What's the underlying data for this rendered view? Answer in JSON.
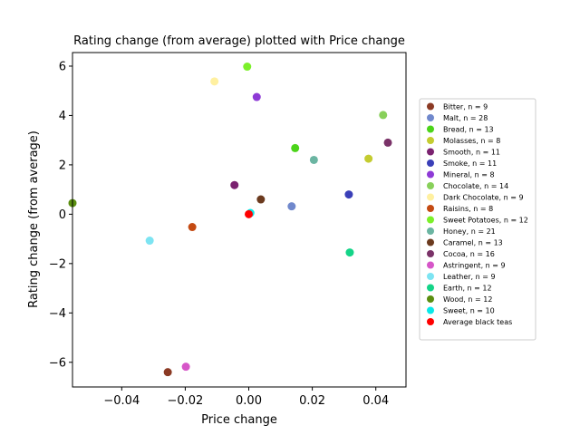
{
  "chart_data": {
    "type": "scatter",
    "title": "Rating change (from average) plotted with Price change",
    "xlabel": "Price change",
    "ylabel": "Rating change (from average)",
    "xlim": [
      -0.0555,
      0.0495
    ],
    "ylim": [
      -7.0,
      6.55
    ],
    "xticks": [
      -0.04,
      -0.02,
      0.0,
      0.02,
      0.04
    ],
    "xtick_labels": [
      "−0.04",
      "−0.02",
      "0.00",
      "0.02",
      "0.04"
    ],
    "yticks": [
      -6,
      -4,
      -2,
      0,
      2,
      4,
      6
    ],
    "ytick_labels": [
      "−6",
      "−4",
      "−2",
      "0",
      "2",
      "4",
      "6"
    ],
    "grid": false,
    "legend_position": "right",
    "series": [
      {
        "name": "Bitter, n = 9",
        "color": "#8b3a24",
        "points": [
          [
            -0.0255,
            -6.4
          ]
        ]
      },
      {
        "name": "Malt, n = 28",
        "color": "#7088cc",
        "points": [
          [
            0.0135,
            0.32
          ]
        ]
      },
      {
        "name": "Bread, n = 13",
        "color": "#4cd41a",
        "points": [
          [
            0.0146,
            2.68
          ]
        ]
      },
      {
        "name": "Molasses, n = 8",
        "color": "#c4cc30",
        "points": [
          [
            0.0377,
            2.25
          ]
        ]
      },
      {
        "name": "Smooth, n = 11",
        "color": "#7b2270",
        "points": [
          [
            -0.0045,
            1.18
          ]
        ]
      },
      {
        "name": "Smoke, n = 11",
        "color": "#3a3fb8",
        "points": [
          [
            0.0315,
            0.8
          ]
        ]
      },
      {
        "name": "Mineral, n = 8",
        "color": "#8e3ad6",
        "points": [
          [
            0.0025,
            4.75
          ]
        ]
      },
      {
        "name": "Chocolate, n = 14",
        "color": "#88d05a",
        "points": [
          [
            0.0423,
            4.02
          ]
        ]
      },
      {
        "name": "Dark Chocolate, n = 9",
        "color": "#fff0a0",
        "points": [
          [
            -0.0108,
            5.38
          ]
        ]
      },
      {
        "name": "Raisins, n = 8",
        "color": "#c44a12",
        "points": [
          [
            -0.0178,
            -0.52
          ]
        ]
      },
      {
        "name": "Sweet Potatoes, n = 12",
        "color": "#7cf02a",
        "points": [
          [
            -0.0005,
            5.98
          ]
        ]
      },
      {
        "name": "Honey, n = 21",
        "color": "#6bb5a2",
        "points": [
          [
            0.0205,
            2.2
          ]
        ]
      },
      {
        "name": "Caramel, n = 13",
        "color": "#6b3a1e",
        "points": [
          [
            0.0038,
            0.6
          ]
        ]
      },
      {
        "name": "Cocoa, n = 16",
        "color": "#7a3268",
        "points": [
          [
            0.0438,
            2.9
          ]
        ]
      },
      {
        "name": "Astringent, n = 9",
        "color": "#d656c8",
        "points": [
          [
            -0.0198,
            -6.18
          ]
        ]
      },
      {
        "name": "Leather, n = 9",
        "color": "#7de4f2",
        "points": [
          [
            -0.0312,
            -1.07
          ]
        ]
      },
      {
        "name": "Earth, n = 12",
        "color": "#14d488",
        "points": [
          [
            0.0318,
            -1.55
          ]
        ]
      },
      {
        "name": "Wood, n = 12",
        "color": "#5a8e10",
        "points": [
          [
            -0.0555,
            0.45
          ]
        ]
      },
      {
        "name": "Sweet, n = 10",
        "color": "#0ae8e8",
        "points": [
          [
            0.0005,
            0.05
          ]
        ]
      },
      {
        "name": "Average black teas",
        "color": "#ff0000",
        "points": [
          [
            0.0,
            0.0
          ]
        ]
      }
    ]
  }
}
